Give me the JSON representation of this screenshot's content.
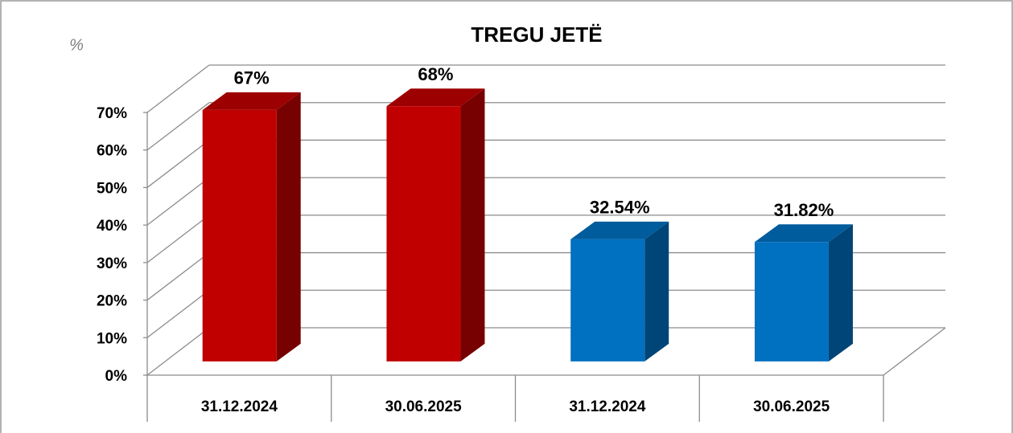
{
  "chart_data": {
    "type": "bar3d",
    "title": "TREGU JETË",
    "y_label": "%",
    "categories": [
      "31.12.2024",
      "30.06.2025",
      "31.12.2024",
      "30.06.2025"
    ],
    "values": [
      67,
      68,
      32.54,
      31.82
    ],
    "value_labels": [
      "67%",
      "68%",
      "32.54%",
      "31.82%"
    ],
    "colors": [
      "#c00000",
      "#c00000",
      "#0070c0",
      "#0070c0"
    ],
    "ylim": [
      0,
      70
    ],
    "yticks": [
      {
        "value": 0,
        "label": "0%"
      },
      {
        "value": 10,
        "label": "10%"
      },
      {
        "value": 20,
        "label": "20%"
      },
      {
        "value": 30,
        "label": "30%"
      },
      {
        "value": 40,
        "label": "40%"
      },
      {
        "value": 50,
        "label": "50%"
      },
      {
        "value": 60,
        "label": "60%"
      },
      {
        "value": 70,
        "label": "70%"
      }
    ],
    "grid": true
  }
}
